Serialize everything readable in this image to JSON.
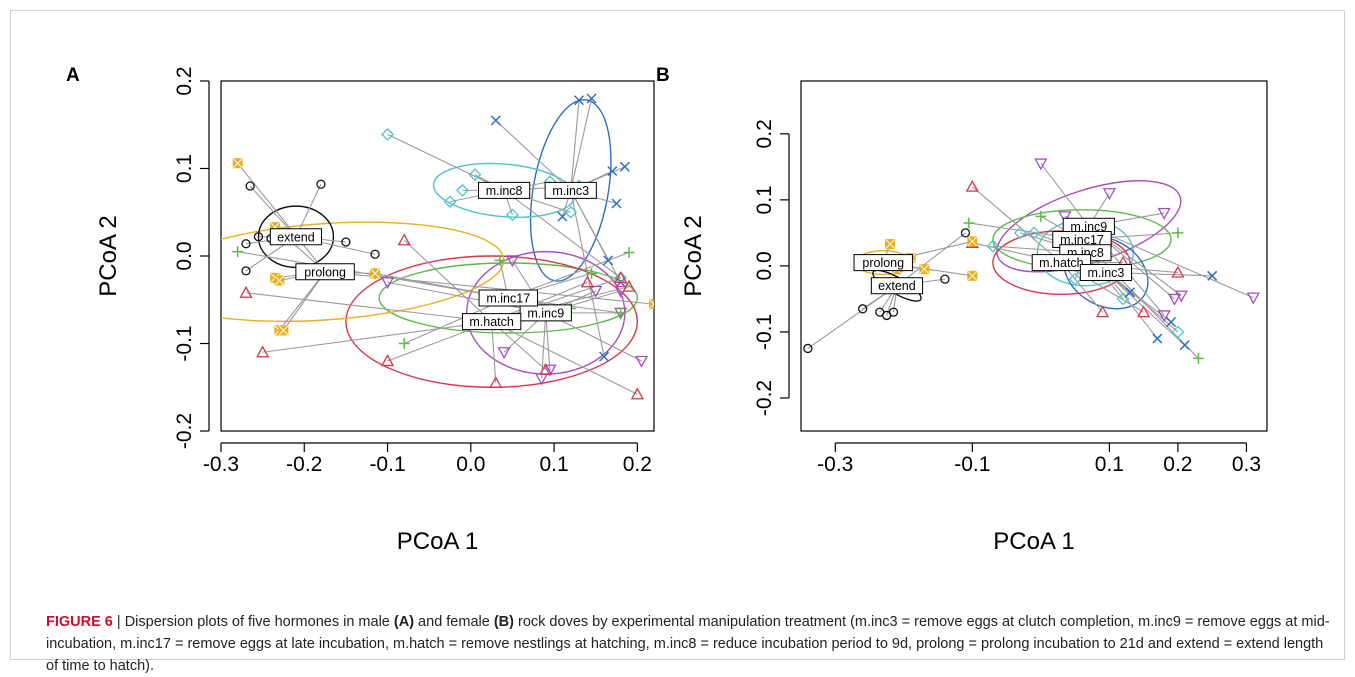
{
  "colors": {
    "m.inc3": "#2f6fbf",
    "m.inc8": "#4fc4c8",
    "m.inc9": "#a64fbf",
    "m.inc17": "#5fb84a",
    "m.hatch": "#d9364c",
    "prolong": "#e8b020",
    "extend": "#111111"
  },
  "markers": {
    "m.inc3": "x",
    "m.inc8": "diamond",
    "m.inc9": "triangle-down",
    "m.inc17": "plus",
    "m.hatch": "triangle-up",
    "prolong": "box-x",
    "extend": "circle"
  },
  "chart_data": [
    {
      "type": "scatter",
      "panel": "A",
      "xlabel": "PCoA 1",
      "ylabel": "PCoA 2",
      "xlim": [
        -0.3,
        0.22
      ],
      "ylim": [
        -0.2,
        0.2
      ],
      "xticks": [
        "-0.3",
        "-0.2",
        "-0.1",
        "0.0",
        "0.1",
        "0.2"
      ],
      "yticks": [
        "-0.2",
        "-0.1",
        "0.0",
        "0.1",
        "0.2"
      ],
      "xtick_values": [
        -0.3,
        -0.2,
        -0.1,
        0.0,
        0.1,
        0.2
      ],
      "ytick_values": [
        -0.2,
        -0.1,
        0.0,
        0.1,
        0.2
      ],
      "groups": [
        {
          "name": "m.inc3",
          "centroid": [
            0.12,
            0.075
          ],
          "ellipse": {
            "rx": 0.045,
            "ry": 0.105,
            "angle": 10
          },
          "points": [
            [
              0.03,
              0.155
            ],
            [
              0.13,
              0.178
            ],
            [
              0.145,
              0.18
            ],
            [
              0.17,
              0.097
            ],
            [
              0.185,
              0.102
            ],
            [
              0.175,
              0.06
            ],
            [
              0.11,
              0.045
            ],
            [
              0.165,
              -0.005
            ],
            [
              0.18,
              -0.03
            ],
            [
              0.16,
              -0.115
            ]
          ]
        },
        {
          "name": "m.inc8",
          "centroid": [
            0.04,
            0.075
          ],
          "ellipse": {
            "rx": 0.085,
            "ry": 0.03,
            "angle": 5
          },
          "points": [
            [
              -0.1,
              0.139
            ],
            [
              0.005,
              0.093
            ],
            [
              -0.01,
              0.075
            ],
            [
              -0.025,
              0.062
            ],
            [
              0.05,
              0.047
            ],
            [
              0.095,
              0.085
            ],
            [
              0.13,
              0.08
            ],
            [
              0.12,
              0.05
            ],
            [
              0.18,
              -0.025
            ]
          ]
        },
        {
          "name": "m.inc9",
          "centroid": [
            0.09,
            -0.065
          ],
          "ellipse": {
            "rx": 0.095,
            "ry": 0.07,
            "angle": 0
          },
          "points": [
            [
              -0.1,
              -0.03
            ],
            [
              0.04,
              -0.11
            ],
            [
              0.085,
              -0.14
            ],
            [
              0.095,
              -0.13
            ],
            [
              0.05,
              -0.005
            ],
            [
              0.15,
              -0.04
            ],
            [
              0.18,
              -0.04
            ],
            [
              0.205,
              -0.12
            ],
            [
              0.18,
              -0.065
            ]
          ]
        },
        {
          "name": "m.inc17",
          "centroid": [
            0.045,
            -0.048
          ],
          "ellipse": {
            "rx": 0.155,
            "ry": 0.04,
            "angle": 0
          },
          "points": [
            [
              -0.28,
              0.005
            ],
            [
              -0.115,
              -0.02
            ],
            [
              -0.08,
              -0.1
            ],
            [
              0.035,
              -0.005
            ],
            [
              0.145,
              -0.02
            ],
            [
              0.19,
              0.004
            ],
            [
              0.18,
              -0.065
            ],
            [
              0.12,
              -0.06
            ]
          ]
        },
        {
          "name": "m.hatch",
          "centroid": [
            0.025,
            -0.075
          ],
          "ellipse": {
            "rx": 0.175,
            "ry": 0.075,
            "angle": 0
          },
          "points": [
            [
              -0.25,
              -0.11
            ],
            [
              -0.27,
              -0.042
            ],
            [
              -0.08,
              0.018
            ],
            [
              -0.1,
              -0.12
            ],
            [
              0.03,
              -0.145
            ],
            [
              0.09,
              -0.13
            ],
            [
              0.14,
              -0.03
            ],
            [
              0.18,
              -0.025
            ],
            [
              0.19,
              -0.035
            ],
            [
              0.2,
              -0.158
            ]
          ]
        },
        {
          "name": "prolong",
          "centroid": [
            -0.175,
            -0.018
          ],
          "ellipse": {
            "rx": 0.215,
            "ry": 0.055,
            "angle": -4
          },
          "points": [
            [
              -0.28,
              0.106
            ],
            [
              -0.235,
              0.033
            ],
            [
              -0.235,
              -0.025
            ],
            [
              -0.23,
              -0.028
            ],
            [
              -0.23,
              -0.085
            ],
            [
              -0.225,
              -0.085
            ],
            [
              -0.115,
              -0.02
            ],
            [
              0.22,
              -0.055
            ]
          ]
        },
        {
          "name": "extend",
          "centroid": [
            -0.21,
            0.022
          ],
          "ellipse": {
            "rx": 0.045,
            "ry": 0.035,
            "angle": 0
          },
          "points": [
            [
              -0.265,
              0.08
            ],
            [
              -0.18,
              0.082
            ],
            [
              -0.27,
              0.014
            ],
            [
              -0.255,
              0.022
            ],
            [
              -0.24,
              0.02
            ],
            [
              -0.27,
              -0.017
            ],
            [
              -0.15,
              0.016
            ],
            [
              -0.115,
              0.002
            ]
          ]
        }
      ]
    },
    {
      "type": "scatter",
      "panel": "B",
      "xlabel": "PCoA 1",
      "ylabel": "PCoA 2",
      "xlim": [
        -0.35,
        0.33
      ],
      "ylim": [
        -0.25,
        0.28
      ],
      "xticks": [
        "-0.3",
        "-0.1",
        "0.1",
        "0.2",
        "0.3"
      ],
      "yticks": [
        "-0.2",
        "-0.1",
        "0.0",
        "0.1",
        "0.2"
      ],
      "xtick_values": [
        -0.3,
        -0.1,
        0.1,
        0.2,
        0.3
      ],
      "ytick_values": [
        -0.2,
        -0.1,
        0.0,
        0.1,
        0.2
      ],
      "groups": [
        {
          "name": "m.inc9",
          "centroid": [
            0.07,
            0.06
          ],
          "ellipse": {
            "rx": 0.14,
            "ry": 0.055,
            "angle": -18
          },
          "points": [
            [
              0.0,
              0.155
            ],
            [
              0.1,
              0.11
            ],
            [
              0.18,
              0.08
            ],
            [
              0.035,
              0.075
            ],
            [
              0.195,
              -0.05
            ],
            [
              0.205,
              -0.045
            ],
            [
              0.31,
              -0.048
            ],
            [
              0.18,
              -0.075
            ]
          ]
        },
        {
          "name": "m.inc17",
          "centroid": [
            0.06,
            0.04
          ],
          "ellipse": {
            "rx": 0.13,
            "ry": 0.045,
            "angle": 0
          },
          "points": [
            [
              -0.105,
              0.065
            ],
            [
              0.2,
              0.05
            ],
            [
              0.08,
              0.055
            ],
            [
              0.0,
              0.075
            ],
            [
              0.23,
              -0.14
            ]
          ]
        },
        {
          "name": "m.inc8",
          "centroid": [
            0.065,
            0.02
          ],
          "ellipse": {
            "rx": 0.07,
            "ry": 0.05,
            "angle": 0
          },
          "points": [
            [
              -0.03,
              0.05
            ],
            [
              -0.01,
              0.05
            ],
            [
              -0.07,
              0.03
            ],
            [
              0.2,
              -0.1
            ],
            [
              0.05,
              -0.02
            ],
            [
              0.12,
              -0.05
            ]
          ]
        },
        {
          "name": "m.hatch",
          "centroid": [
            0.03,
            0.005
          ],
          "ellipse": {
            "rx": 0.1,
            "ry": 0.048,
            "angle": 0
          },
          "points": [
            [
              -0.1,
              0.12
            ],
            [
              0.12,
              0.005
            ],
            [
              0.2,
              -0.01
            ],
            [
              -0.1,
              0.035
            ],
            [
              0.09,
              -0.07
            ],
            [
              0.15,
              -0.07
            ]
          ]
        },
        {
          "name": "m.inc3",
          "centroid": [
            0.095,
            -0.01
          ],
          "ellipse": {
            "rx": 0.065,
            "ry": 0.05,
            "angle": 30
          },
          "points": [
            [
              0.25,
              -0.015
            ],
            [
              0.17,
              -0.11
            ],
            [
              0.19,
              -0.085
            ],
            [
              0.21,
              -0.12
            ],
            [
              0.13,
              -0.04
            ]
          ]
        },
        {
          "name": "prolong",
          "centroid": [
            -0.23,
            0.005
          ],
          "ellipse": {
            "rx": 0.04,
            "ry": 0.018,
            "angle": 0
          },
          "points": [
            [
              -0.22,
              0.033
            ],
            [
              -0.205,
              0.01
            ],
            [
              -0.19,
              0.012
            ],
            [
              -0.21,
              -0.005
            ],
            [
              -0.1,
              0.037
            ],
            [
              -0.1,
              -0.015
            ],
            [
              -0.17,
              -0.005
            ]
          ]
        },
        {
          "name": "extend",
          "centroid": [
            -0.21,
            -0.03
          ],
          "ellipse": {
            "rx": 0.04,
            "ry": 0.012,
            "angle": 30
          },
          "points": [
            [
              -0.34,
              -0.125
            ],
            [
              -0.26,
              -0.065
            ],
            [
              -0.235,
              -0.07
            ],
            [
              -0.225,
              -0.075
            ],
            [
              -0.215,
              -0.07
            ],
            [
              -0.11,
              0.05
            ],
            [
              -0.14,
              -0.02
            ]
          ]
        }
      ]
    }
  ],
  "panel_labels": [
    "A",
    "B"
  ],
  "caption": {
    "figure_label": "FIGURE 6",
    "separator": " | ",
    "t1": "Dispersion plots of five hormones in male ",
    "b1": "(A)",
    "t2": " and female ",
    "b2": "(B)",
    "t3": " rock doves by experimental manipulation treatment (m.inc3 = remove eggs at clutch completion, m.inc9 = remove eggs at mid-incubation, m.inc17 = remove eggs at late incubation, m.hatch = remove nestlings at hatching, m.inc8 = reduce incubation period to 9d, prolong = prolong incubation to 21d and extend = extend length of time to hatch)."
  }
}
